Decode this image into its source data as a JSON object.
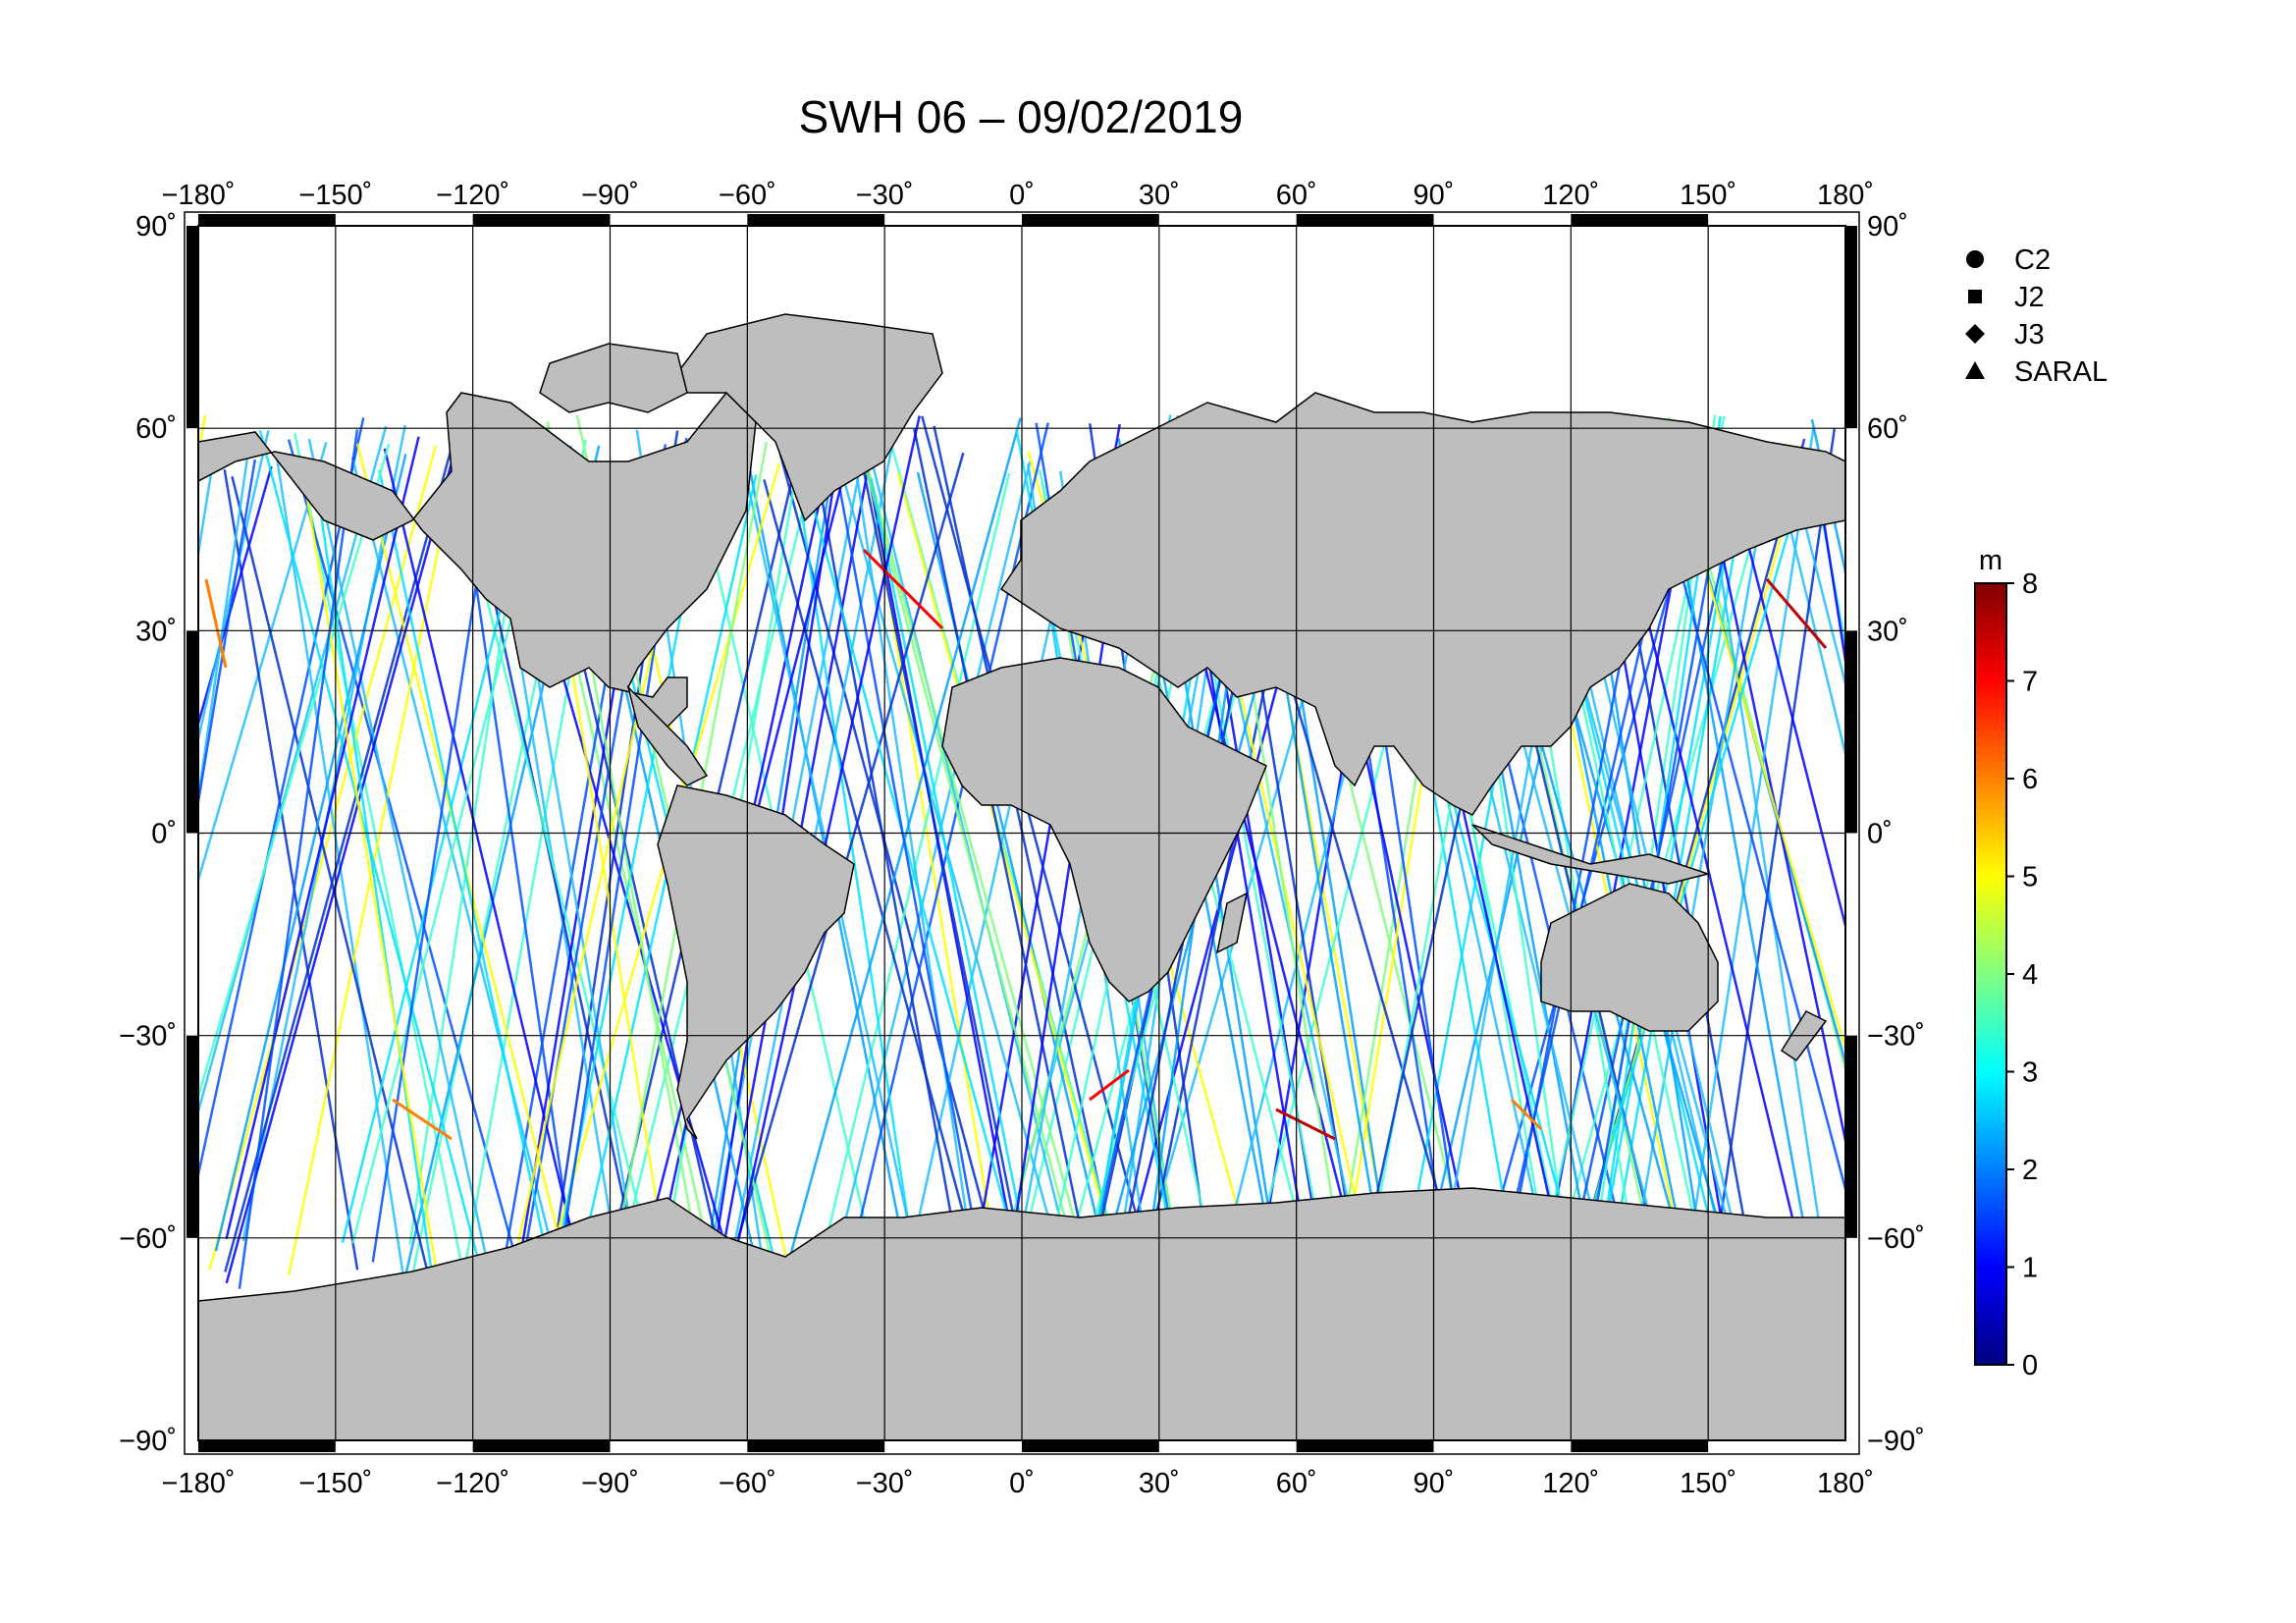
{
  "title": "SWH 06 – 09/02/2019",
  "lon_ticks": [
    "−180˚",
    "−150˚",
    "−120˚",
    "−90˚",
    "−60˚",
    "−30˚",
    "0˚",
    "30˚",
    "60˚",
    "90˚",
    "120˚",
    "150˚",
    "180˚"
  ],
  "lat_ticks": [
    "90˚",
    "60˚",
    "30˚",
    "0˚",
    "−30˚",
    "−60˚",
    "−90˚"
  ],
  "legend": [
    {
      "label": "C2",
      "symbol": "circle"
    },
    {
      "label": "J2",
      "symbol": "square"
    },
    {
      "label": "J3",
      "symbol": "diamond"
    },
    {
      "label": "SARAL",
      "symbol": "triangle"
    }
  ],
  "colorbar": {
    "unit": "m",
    "labels": [
      "8",
      "7",
      "6",
      "5",
      "4",
      "3",
      "2",
      "1",
      "0"
    ],
    "range": [
      0,
      8
    ],
    "stops": [
      "#000080",
      "#0000ff",
      "#0080ff",
      "#00ffff",
      "#80ff80",
      "#ffff00",
      "#ff8000",
      "#ff0000",
      "#800000"
    ]
  },
  "colors": {
    "land": "#bebebe",
    "ocean": "#ffffff",
    "grid": "#000000"
  },
  "chart_data": {
    "type": "map",
    "title": "SWH 06 – 09/02/2019",
    "lon_range": [
      -180,
      180
    ],
    "lat_range": [
      -90,
      90
    ],
    "grid_step_deg": 30,
    "colorbar_range_m": [
      0,
      8
    ]
  }
}
